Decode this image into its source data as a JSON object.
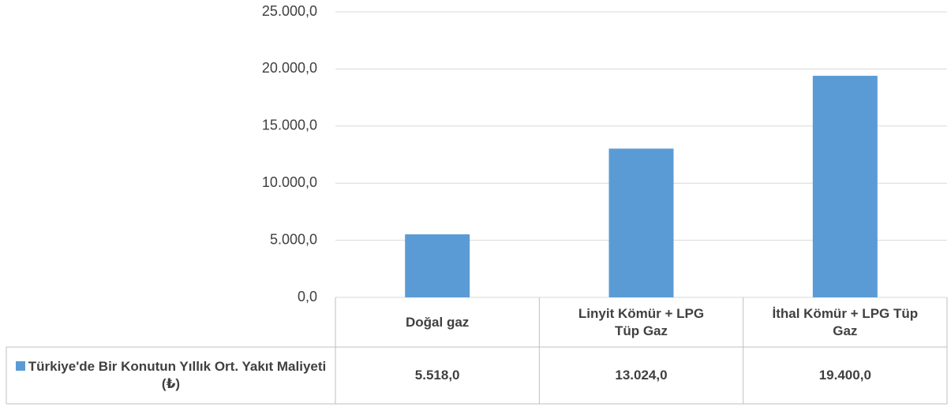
{
  "chart_data": {
    "type": "bar",
    "categories": [
      "Doğal gaz",
      "Linyit Kömür + LPG Tüp Gaz",
      "İthal Kömür + LPG Tüp Gaz"
    ],
    "series": [
      {
        "name": "Türkiye'de Bir Konutun Yıllık Ort. Yakıt Maliyeti (₺)",
        "color": "#5b9bd5",
        "values": [
          5518,
          13024,
          19400
        ],
        "value_labels": [
          "5.518,0",
          "13.024,0",
          "19.400,0"
        ]
      }
    ],
    "ylim": [
      0,
      25000
    ],
    "yticks": [
      {
        "value": 0,
        "label": "0,0"
      },
      {
        "value": 5000,
        "label": "5.000,0"
      },
      {
        "value": 10000,
        "label": "10.000,0"
      },
      {
        "value": 15000,
        "label": "15.000,0"
      },
      {
        "value": 20000,
        "label": "20.000,0"
      },
      {
        "value": 25000,
        "label": "25.000,0"
      }
    ],
    "grid": true
  }
}
